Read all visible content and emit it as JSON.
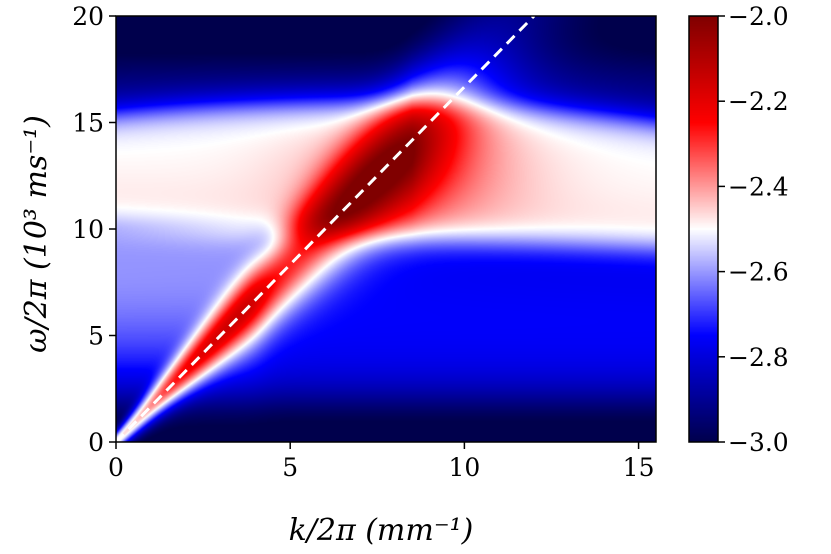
{
  "chart_data": {
    "type": "heatmap",
    "title": "",
    "xlabel": "k/2π (mm⁻¹)",
    "ylabel": "ω/2π (10³ ms⁻¹)",
    "xlim": [
      0,
      15.5
    ],
    "ylim": [
      0,
      20
    ],
    "x_ticks": [
      0,
      5,
      10,
      15
    ],
    "x_tick_labels": [
      "0",
      "5",
      "10",
      "15"
    ],
    "y_ticks": [
      0,
      5,
      10,
      15,
      20
    ],
    "y_tick_labels": [
      "0",
      "5",
      "10",
      "15",
      "20"
    ],
    "colorbar": {
      "range": [
        -3.0,
        -2.0
      ],
      "ticks": [
        -3.0,
        -2.8,
        -2.6,
        -2.4,
        -2.2,
        -2.0
      ],
      "tick_labels": [
        "−3.0",
        "−2.8",
        "−2.6",
        "−2.4",
        "−2.2",
        "−2.0"
      ],
      "colormap": "seismic",
      "colors": {
        "low": "#00004c",
        "mid": "#ffffff",
        "high": "#800000",
        "blue": "#0000ff",
        "red": "#ff0000"
      }
    },
    "dashed_line": {
      "label": "",
      "slope": 1.667,
      "intercept": 0,
      "x_range": [
        0,
        12
      ],
      "color": "#ffffff"
    },
    "features": {
      "ridge": {
        "slope": 1.66,
        "peak_x": 8.5,
        "peak_y": 12.5
      },
      "high_band": {
        "center_y": 12.5,
        "upper_edge_y": 15.5,
        "lower_edge_y_at_x0": 10,
        "lower_edge_y_at_x15": 10.5
      },
      "low_mode": {
        "upper_edge_y": 10,
        "x_end": 4.2
      }
    }
  }
}
